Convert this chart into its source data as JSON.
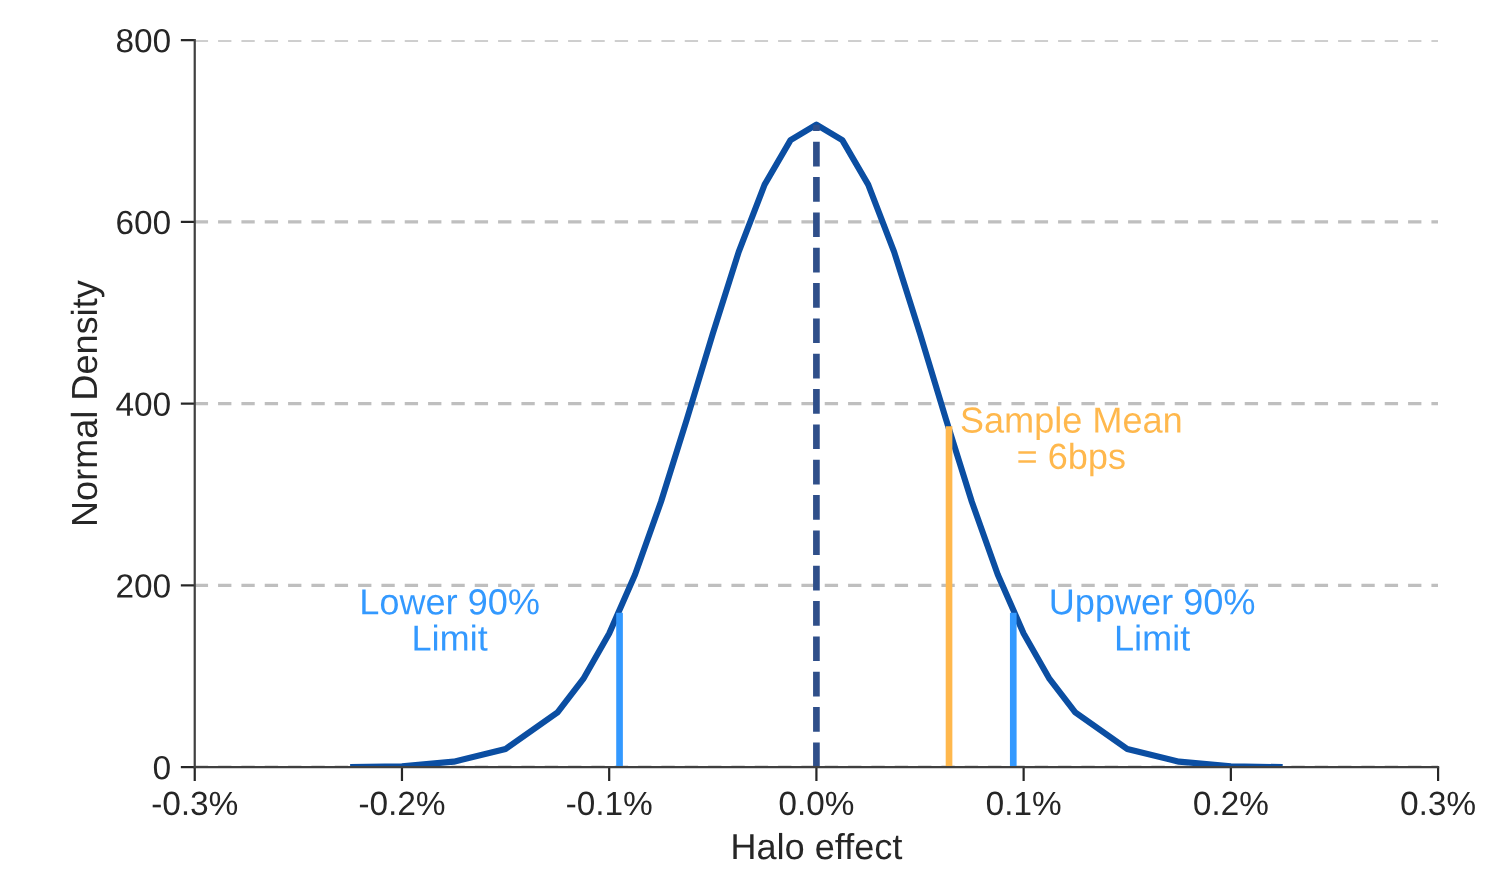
{
  "chart_data": {
    "type": "line",
    "xlabel": "Halo effect",
    "ylabel": "Normal Density",
    "xlim": [
      -0.3,
      0.3
    ],
    "xticks": [
      {
        "value": -0.3,
        "label": "-0.3%"
      },
      {
        "value": -0.2,
        "label": "-0.2%"
      },
      {
        "value": -0.1,
        "label": "-0.1%"
      },
      {
        "value": 0,
        "label": "0.0%"
      },
      {
        "value": 0.1,
        "label": "0.1%"
      },
      {
        "value": 0.2,
        "label": "0.2%"
      },
      {
        "value": 0.3,
        "label": "0.3%"
      }
    ],
    "ylim": [
      0,
      800
    ],
    "yticks": [
      0,
      200,
      400,
      600,
      800
    ],
    "grid": "y",
    "legend": false,
    "marker": "none",
    "series": [
      {
        "color": "#0b4ea2",
        "line_style": "solid",
        "x": [
          -0.225,
          -0.2,
          -0.175,
          -0.15,
          -0.125,
          -0.1125,
          -0.1,
          -0.0875,
          -0.075,
          -0.0625,
          -0.05,
          -0.0375,
          -0.025,
          -0.0125,
          0,
          0.0125,
          0.025,
          0.0375,
          0.05,
          0.0625,
          0.075,
          0.0875,
          0.1,
          0.1125,
          0.125,
          0.15,
          0.175,
          0.2,
          0.225
        ],
        "values": [
          0,
          1,
          6,
          20,
          60,
          97,
          147,
          212,
          292,
          383,
          477,
          567,
          641,
          690,
          707,
          690,
          641,
          567,
          477,
          383,
          292,
          212,
          147,
          97,
          60,
          20,
          6,
          1,
          0
        ]
      },
      {
        "color": "#2f4f8a",
        "line_style": "dashed",
        "x": [
          0,
          0
        ],
        "values": [
          0,
          707
        ]
      },
      {
        "color": "#3399ff",
        "line_style": "solid",
        "x": [
          -0.095,
          -0.095
        ],
        "values": [
          0,
          170
        ]
      },
      {
        "color": "#3399ff",
        "line_style": "solid",
        "x": [
          0.095,
          0.095
        ],
        "values": [
          0,
          170
        ]
      },
      {
        "color": "#ffb84d",
        "line_style": "solid",
        "x": [
          0.064,
          0.064
        ],
        "values": [
          0,
          375
        ]
      }
    ],
    "annotations": [
      "Lower 90%\nLimit",
      "Sample Mean\n= 6bps",
      "Uppwer 90%\nLimit"
    ]
  }
}
